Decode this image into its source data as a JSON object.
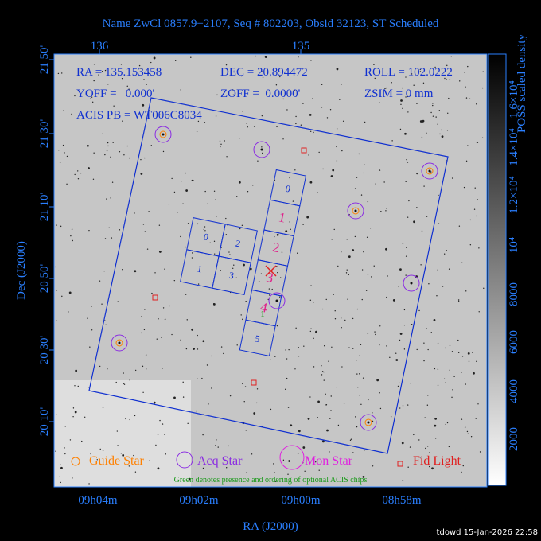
{
  "header": {
    "title": "Name ZwCl 0857.9+2107, Seq # 802203, Obsid 32123, ST Scheduled"
  },
  "top_axis": {
    "ticks": [
      "136",
      "135"
    ]
  },
  "left_axis": {
    "label": "Dec (J2000)",
    "ticks": [
      "21 50'",
      "21 30'",
      "21 10'",
      "20 50'",
      "20 30'",
      "20 10'"
    ]
  },
  "bottom_axis": {
    "label": "RA (J2000)",
    "ticks": [
      "09h04m",
      "09h02m",
      "09h00m",
      "08h58m"
    ]
  },
  "colorbar": {
    "label": "POSS scaled density",
    "ticks": [
      "2000",
      "4000",
      "6000",
      "8000",
      "10⁴",
      "1.2×10⁴",
      "1.4×10⁴",
      "1.6×10⁴"
    ]
  },
  "info": {
    "lines": [
      [
        "RA = 135.153458",
        "DEC = 20.894472",
        "ROLL = 102.0222"
      ],
      [
        "YOFF =   0.000'",
        "ZOFF =  0.0000'",
        "ZSIM = 0 mm"
      ],
      [
        "ACIS PB = WT006C8034"
      ]
    ]
  },
  "chips": {
    "s_array": [
      "0",
      "1",
      "2",
      "3",
      "4",
      "5"
    ],
    "i_array": [
      "0",
      "2",
      "1",
      "3"
    ],
    "optional": "1"
  },
  "legend": [
    "Guide Star",
    "Acq Star",
    "Mon Star",
    "Fid Light"
  ],
  "note": "Green denotes presence and ordering of optional ACIS chips",
  "footer": "tdowd 15-Jan-2026 22:58"
}
